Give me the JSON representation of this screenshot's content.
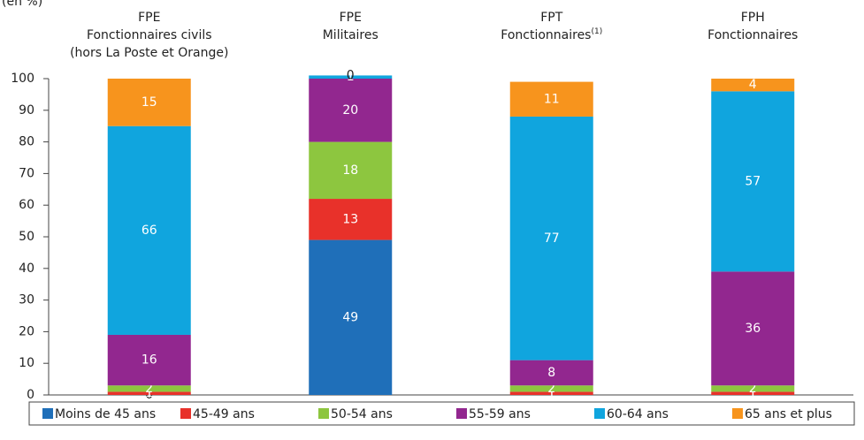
{
  "chart_data": {
    "type": "stacked_bar",
    "unit_label": "(en %)",
    "categories": [
      [
        "FPE",
        "Fonctionnaires civils",
        "(hors La Poste et Orange)"
      ],
      [
        "FPE",
        "Militaires"
      ],
      [
        "FPT",
        "Fonctionnaires"
      ],
      [
        "FPH",
        "Fonctionnaires"
      ]
    ],
    "category_notes": [
      null,
      null,
      "(1)",
      null
    ],
    "series": [
      {
        "name": "Moins de 45 ans",
        "color": "#1f6fb9",
        "values": [
          0,
          49,
          null,
          null
        ]
      },
      {
        "name": "45-49 ans",
        "color": "#e8312a",
        "values": [
          1,
          13,
          1,
          1
        ]
      },
      {
        "name": "50-54 ans",
        "color": "#8dc63f",
        "values": [
          2,
          18,
          2,
          2
        ]
      },
      {
        "name": "55-59 ans",
        "color": "#92278f",
        "values": [
          16,
          20,
          8,
          36
        ]
      },
      {
        "name": "60-64 ans",
        "color": "#10a5de",
        "values": [
          66,
          1,
          77,
          57
        ]
      },
      {
        "name": "65 ans et plus",
        "color": "#f7941d",
        "values": [
          15,
          0,
          11,
          4
        ]
      }
    ],
    "ylim": [
      0,
      100
    ],
    "yticks": [
      0,
      10,
      20,
      30,
      40,
      50,
      60,
      70,
      80,
      90,
      100
    ],
    "grid": false
  }
}
